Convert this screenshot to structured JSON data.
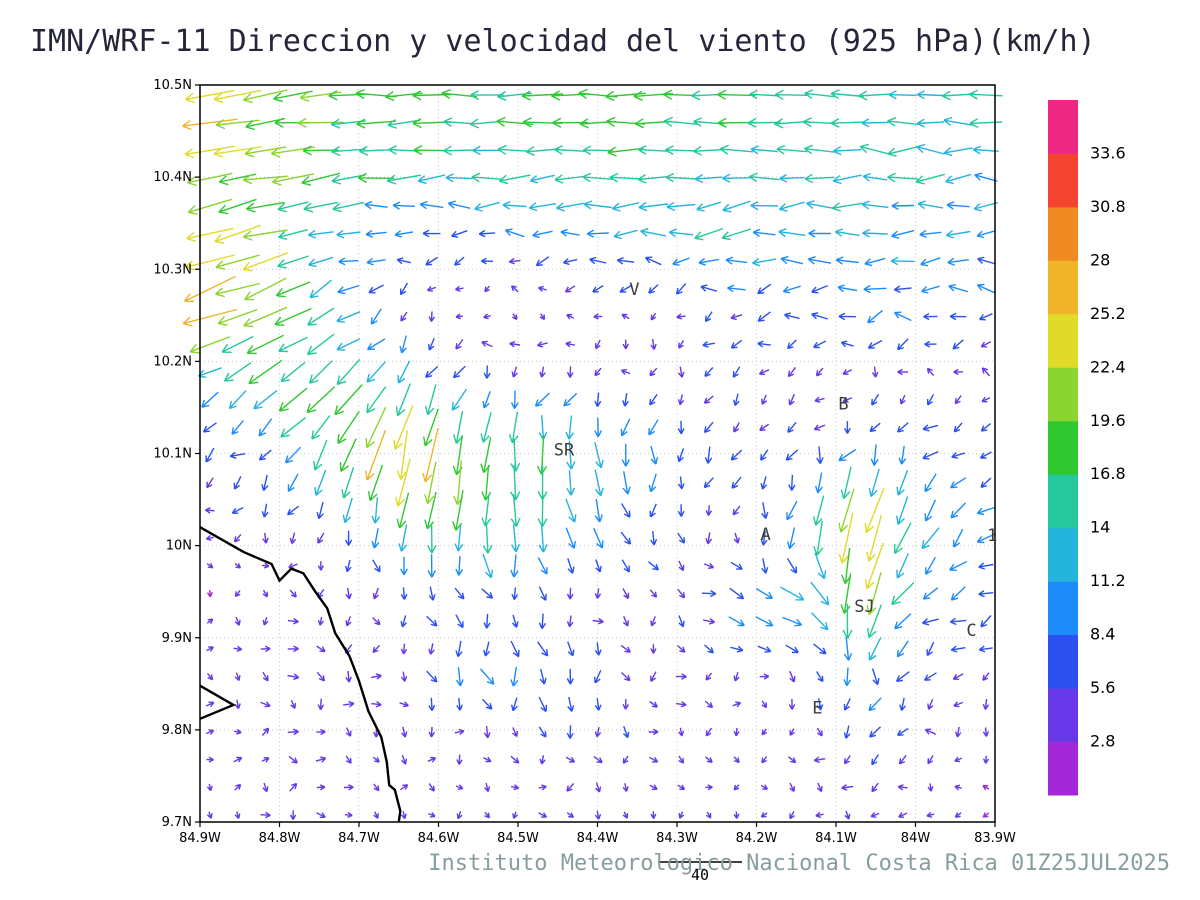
{
  "chart_data": {
    "type": "quiver",
    "title": "IMN/WRF-11 Direccion y velocidad del viento (925 hPa)(km/h)",
    "footer": "Instituto Meteorologico Nacional Costa Rica 01Z25JUL2025",
    "units": "km/h",
    "pressure_level": "925 hPa",
    "lon_range": [
      84.9,
      83.9
    ],
    "lat_range": [
      9.7,
      10.5
    ],
    "x_ticks": [
      {
        "label": "84.9W",
        "value": 84.9
      },
      {
        "label": "84.8W",
        "value": 84.8
      },
      {
        "label": "84.7W",
        "value": 84.7
      },
      {
        "label": "84.6W",
        "value": 84.6
      },
      {
        "label": "84.5W",
        "value": 84.5
      },
      {
        "label": "84.4W",
        "value": 84.4
      },
      {
        "label": "84.3W",
        "value": 84.3
      },
      {
        "label": "84.2W",
        "value": 84.2
      },
      {
        "label": "84.1W",
        "value": 84.1
      },
      {
        "label": "84W",
        "value": 84.0
      },
      {
        "label": "83.9W",
        "value": 83.9
      }
    ],
    "y_ticks": [
      {
        "label": "10.5N",
        "value": 10.5
      },
      {
        "label": "10.4N",
        "value": 10.4
      },
      {
        "label": "10.3N",
        "value": 10.3
      },
      {
        "label": "10.2N",
        "value": 10.2
      },
      {
        "label": "10.1N",
        "value": 10.1
      },
      {
        "label": "10N",
        "value": 10.0
      },
      {
        "label": "9.9N",
        "value": 9.9
      },
      {
        "label": "9.8N",
        "value": 9.8
      },
      {
        "label": "9.7N",
        "value": 9.7
      }
    ],
    "reference_vector": {
      "label": "40",
      "value": 40
    },
    "colorbar": {
      "interval": 2.8,
      "levels": [
        2.8,
        5.6,
        8.4,
        11.2,
        14,
        16.8,
        19.6,
        22.4,
        25.2,
        28,
        30.8,
        33.6
      ],
      "labels_top_to_bottom": [
        "33.6",
        "30.8",
        "28",
        "25.2",
        "22.4",
        "19.6",
        "16.8",
        "14",
        "11.2",
        "8.4",
        "5.6",
        "2.8"
      ],
      "colors_low_to_high": [
        "#a428d8",
        "#6638e8",
        "#2b50f0",
        "#1e8cf8",
        "#24b4dc",
        "#24c89c",
        "#30c830",
        "#8cd430",
        "#e0da28",
        "#f0b428",
        "#f28a24",
        "#f24430",
        "#ee2882"
      ]
    },
    "cities": [
      {
        "label": "V",
        "lon": 84.36,
        "lat": 10.272
      },
      {
        "label": "B",
        "lon": 84.097,
        "lat": 10.148
      },
      {
        "label": "SR",
        "lon": 84.455,
        "lat": 10.098
      },
      {
        "label": "A",
        "lon": 84.195,
        "lat": 10.006
      },
      {
        "label": "1",
        "lon": 83.91,
        "lat": 10.005
      },
      {
        "label": "SJ",
        "lon": 84.077,
        "lat": 9.928
      },
      {
        "label": "C",
        "lon": 83.936,
        "lat": 9.902
      },
      {
        "label": "E",
        "lon": 84.13,
        "lat": 9.818
      }
    ],
    "coastline_main": [
      [
        84.9,
        10.02
      ],
      [
        84.845,
        9.993
      ],
      [
        84.81,
        9.98
      ],
      [
        84.8,
        9.962
      ],
      [
        84.785,
        9.975
      ],
      [
        84.77,
        9.97
      ],
      [
        84.755,
        9.95
      ],
      [
        84.74,
        9.932
      ],
      [
        84.73,
        9.905
      ],
      [
        84.712,
        9.88
      ],
      [
        84.7,
        9.853
      ],
      [
        84.688,
        9.82
      ],
      [
        84.672,
        9.792
      ],
      [
        84.665,
        9.765
      ],
      [
        84.662,
        9.74
      ],
      [
        84.655,
        9.735
      ],
      [
        84.648,
        9.712
      ],
      [
        84.65,
        9.7
      ]
    ],
    "coastline_inlet": [
      [
        84.9,
        9.848
      ],
      [
        84.858,
        9.827
      ],
      [
        84.9,
        9.812
      ]
    ],
    "wind_field": {
      "lons": [
        84.9,
        84.817,
        84.733,
        84.65,
        84.567,
        84.483,
        84.4,
        84.317,
        84.233,
        84.15,
        84.067,
        83.983,
        83.9
      ],
      "lats": [
        10.5,
        10.42,
        10.34,
        10.26,
        10.18,
        10.1,
        10.02,
        9.94,
        9.86,
        9.78,
        9.7
      ],
      "u_east_kmh": [
        [
          -27,
          -22,
          -20,
          -19,
          -18,
          -18,
          -18,
          -18,
          -17,
          -16,
          -15,
          -15,
          -15
        ],
        [
          -22,
          -20,
          -18,
          -16,
          -15,
          -15,
          -16,
          -16,
          -15,
          -14,
          -14,
          -13,
          -13
        ],
        [
          -22,
          -18,
          -12,
          -9,
          -8,
          -9,
          -11,
          -12,
          -13,
          -12,
          -12,
          -11,
          -10
        ],
        [
          -25,
          -20,
          -10,
          -4,
          -2,
          -2,
          -3,
          -4,
          -6,
          -8,
          -9,
          -8,
          -7
        ],
        [
          -9,
          -13,
          -12,
          -7,
          -4,
          -3,
          -3,
          -3,
          -4,
          -5,
          -4,
          -4,
          -4
        ],
        [
          -5,
          -6,
          -8,
          -6,
          -2,
          -1,
          0,
          -2,
          -3,
          -2,
          -4,
          -5,
          -4
        ],
        [
          -3,
          -3,
          -3,
          -2,
          -1,
          1,
          2,
          1,
          -1,
          -2,
          -8,
          -6,
          -5
        ],
        [
          2,
          3,
          2,
          1,
          2,
          3,
          2,
          3,
          8,
          12,
          -4,
          -8,
          -6
        ],
        [
          3,
          4,
          3,
          3,
          2,
          2,
          1,
          2,
          3,
          3,
          -2,
          -4,
          -4
        ],
        [
          3,
          4,
          4,
          3,
          3,
          2,
          2,
          2,
          2,
          1,
          -2,
          -3,
          -3
        ],
        [
          3,
          4,
          4,
          3,
          3,
          2,
          2,
          2,
          1,
          0,
          -2,
          -3,
          -2
        ]
      ],
      "v_north_kmh": [
        [
          -6,
          -3,
          -1,
          0,
          0,
          0,
          0,
          0,
          0,
          0,
          0,
          0,
          0
        ],
        [
          -4,
          -3,
          -2,
          -1,
          0,
          0,
          0,
          0,
          0,
          0,
          0,
          0,
          0
        ],
        [
          -7,
          -5,
          -3,
          -2,
          -1,
          -1,
          -1,
          -1,
          -1,
          0,
          0,
          0,
          0
        ],
        [
          -9,
          -8,
          -5,
          -3,
          -2,
          -2,
          -2,
          -2,
          -2,
          -1,
          -1,
          -1,
          -1
        ],
        [
          -5,
          -10,
          -13,
          -9,
          -6,
          -5,
          -4,
          -4,
          -3,
          -2,
          -2,
          -2,
          -2
        ],
        [
          -4,
          -6,
          -16,
          -26,
          -21,
          -17,
          -13,
          -8,
          -6,
          -6,
          -8,
          -6,
          -4
        ],
        [
          -3,
          -4,
          -7,
          -12,
          -16,
          -15,
          -10,
          -6,
          -5,
          -10,
          -26,
          -10,
          -6
        ],
        [
          -2,
          -3,
          -4,
          -5,
          -6,
          -5,
          -4,
          -4,
          -3,
          -6,
          -20,
          -5,
          -3
        ],
        [
          -2,
          -3,
          -4,
          -4,
          -8,
          -9,
          -6,
          -4,
          -3,
          -4,
          -9,
          -5,
          -3
        ],
        [
          -1,
          -2,
          -2,
          -3,
          -3,
          -4,
          -5,
          -4,
          -3,
          -4,
          -6,
          -3,
          -2
        ],
        [
          0,
          -1,
          -1,
          -2,
          -2,
          -3,
          -3,
          -2,
          -3,
          -4,
          -4,
          -2,
          -1
        ]
      ]
    },
    "style": {
      "grid_color": "#c8c8c8",
      "frame_color": "#000000",
      "coast_color": "#000000",
      "title_color": "#26263a",
      "footer_color": "#869e9e",
      "city_label_color": "#3c3c3c"
    }
  }
}
